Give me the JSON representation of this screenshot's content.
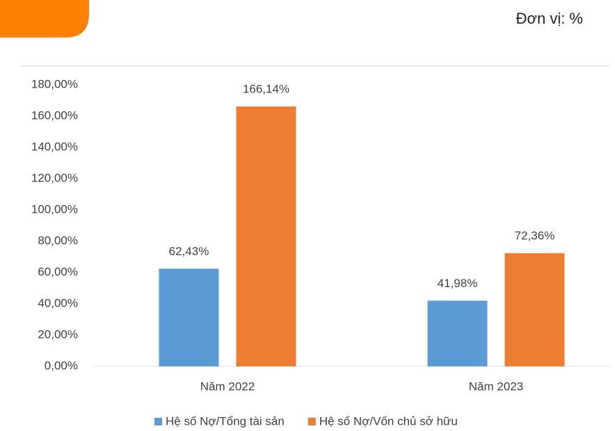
{
  "chart_data": {
    "type": "bar",
    "unit_label": "Đơn vị: %",
    "categories": [
      "Năm 2022",
      "Năm 2023"
    ],
    "series": [
      {
        "name": "Hệ số Nợ/Tổng tài sản",
        "color": "#5b9bd5",
        "values": [
          62.43,
          41.98
        ],
        "value_labels": [
          "62,43%",
          "41,98%"
        ]
      },
      {
        "name": "Hệ số Nợ/Vốn chủ sở hữu",
        "color": "#ed7d31",
        "values": [
          166.14,
          72.36
        ],
        "value_labels": [
          "166,14%",
          "72,36%"
        ]
      }
    ],
    "ylim": [
      0,
      180
    ],
    "yticks": [
      {
        "value": 0,
        "label": "0,00%"
      },
      {
        "value": 20,
        "label": "20,00%"
      },
      {
        "value": 40,
        "label": "40,00%"
      },
      {
        "value": 60,
        "label": "60,00%"
      },
      {
        "value": 80,
        "label": "80,00%"
      },
      {
        "value": 100,
        "label": "100,00%"
      },
      {
        "value": 120,
        "label": "120,00%"
      },
      {
        "value": 140,
        "label": "140,00%"
      },
      {
        "value": 160,
        "label": "160,00%"
      },
      {
        "value": 180,
        "label": "180,00%"
      }
    ],
    "grid": false,
    "legend": "bottom"
  }
}
